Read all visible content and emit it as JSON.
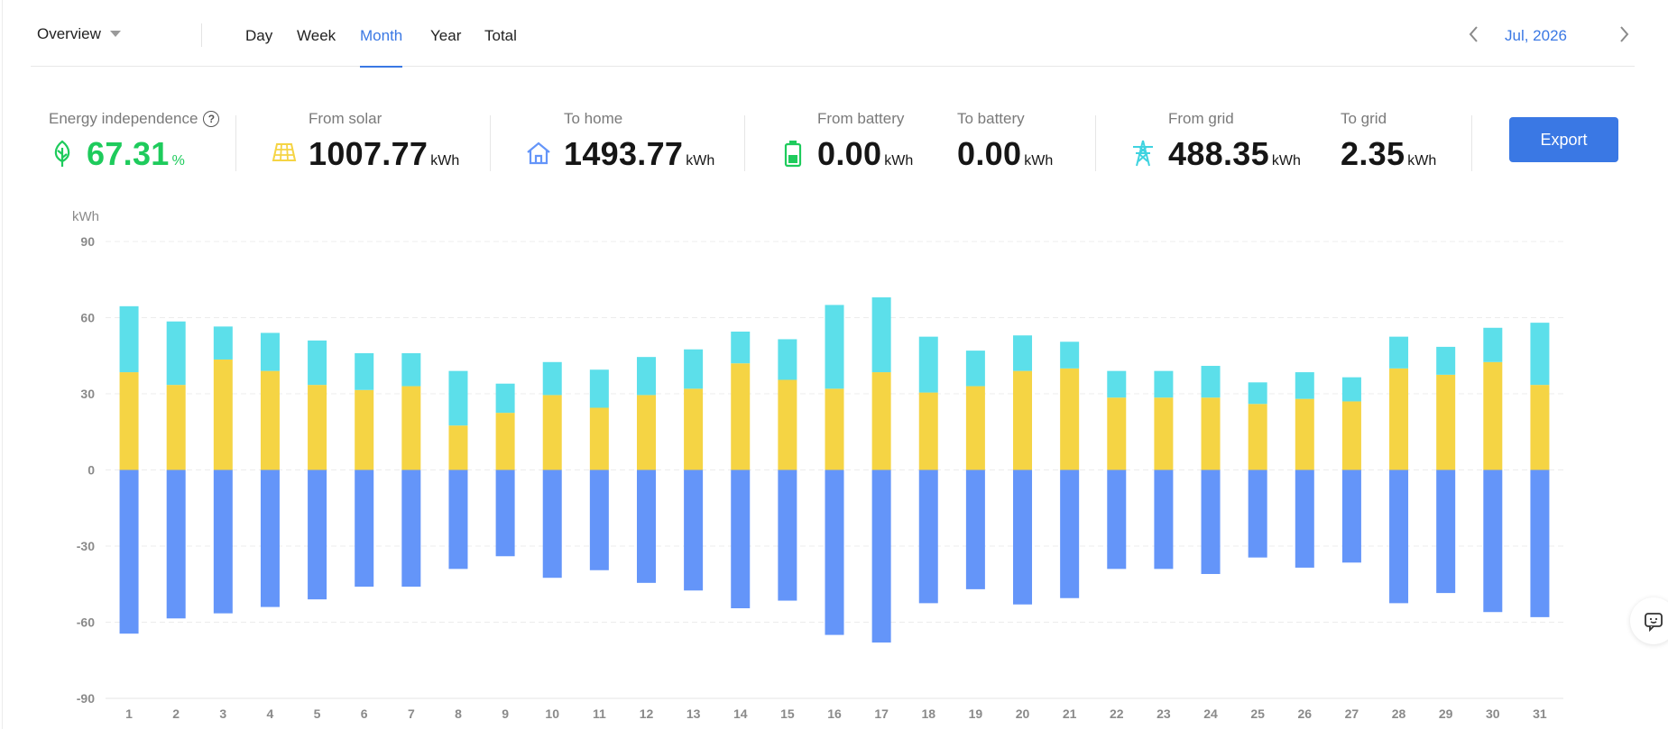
{
  "header": {
    "view_select": "Overview",
    "tabs": [
      {
        "label": "Day",
        "active": false
      },
      {
        "label": "Week",
        "active": false
      },
      {
        "label": "Month",
        "active": true
      },
      {
        "label": "Year",
        "active": false
      },
      {
        "label": "Total",
        "active": false
      }
    ],
    "period_label": "Jul, 2026"
  },
  "stats": {
    "independence": {
      "label": "Energy independence",
      "value": "67.31",
      "unit": "%"
    },
    "from_solar": {
      "label": "From solar",
      "value": "1007.77",
      "unit": "kWh"
    },
    "to_home": {
      "label": "To home",
      "value": "1493.77",
      "unit": "kWh"
    },
    "from_battery": {
      "label": "From battery",
      "value": "0.00",
      "unit": "kWh"
    },
    "to_battery": {
      "label": "To battery",
      "value": "0.00",
      "unit": "kWh"
    },
    "from_grid": {
      "label": "From grid",
      "value": "488.35",
      "unit": "kWh"
    },
    "to_grid": {
      "label": "To grid",
      "value": "2.35",
      "unit": "kWh"
    }
  },
  "export_label": "Export",
  "icons": {
    "independence": "leaf-icon",
    "solar": "solar-panel-icon",
    "home": "house-icon",
    "battery": "battery-icon",
    "grid": "power-tower-icon",
    "feedback": "chat-feedback-icon",
    "help": "question-mark-icon"
  },
  "colors": {
    "accent": "#3a78e4",
    "green": "#1ecb5c",
    "solar": "#f5d444",
    "grid": "#5cdfea",
    "home": "#6495f9"
  },
  "chart_data": {
    "type": "bar",
    "ylabel": "kWh",
    "ylim": [
      -90,
      90
    ],
    "yticks": [
      90,
      60,
      30,
      0,
      -30,
      -60,
      -90
    ],
    "categories": [
      "1",
      "2",
      "3",
      "4",
      "5",
      "6",
      "7",
      "8",
      "9",
      "10",
      "11",
      "12",
      "13",
      "14",
      "15",
      "16",
      "17",
      "18",
      "19",
      "20",
      "21",
      "22",
      "23",
      "24",
      "25",
      "26",
      "27",
      "28",
      "29",
      "30",
      "31"
    ],
    "series": [
      {
        "color": "#f5d444",
        "stack": "positive",
        "values": [
          38.5,
          33.5,
          43.5,
          39,
          33.5,
          31.5,
          33,
          17.5,
          22.5,
          29.5,
          24.5,
          29.5,
          32,
          42,
          35.5,
          32,
          38.5,
          30.5,
          33,
          39,
          40,
          28.5,
          28.5,
          28.5,
          26,
          28,
          27,
          40,
          37.5,
          42.5,
          33.5
        ]
      },
      {
        "color": "#5cdfea",
        "stack": "positive",
        "values": [
          26,
          25,
          13,
          15,
          17.5,
          14.5,
          13,
          21.5,
          11.5,
          13,
          15,
          15,
          15.5,
          12.5,
          16,
          33,
          29.5,
          22,
          14,
          14,
          10.5,
          10.5,
          10.5,
          12.5,
          8.5,
          10.5,
          9.5,
          12.5,
          11,
          13.5,
          24.5
        ]
      },
      {
        "color": "#6495f9",
        "stack": "negative",
        "values": [
          -64.5,
          -58.5,
          -56.5,
          -54,
          -51,
          -46,
          -46,
          -39,
          -34,
          -42.5,
          -39.5,
          -44.5,
          -47.5,
          -54.5,
          -51.5,
          -65,
          -68,
          -52.5,
          -47,
          -53,
          -50.5,
          -39,
          -39,
          -41,
          -34.5,
          -38.5,
          -36.5,
          -52.5,
          -48.5,
          -56,
          -58
        ]
      }
    ],
    "grid": true
  }
}
